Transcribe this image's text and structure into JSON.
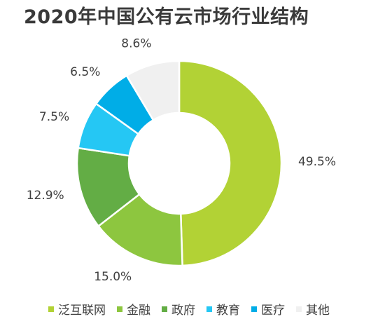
{
  "chart_data": {
    "type": "pie",
    "title": "2020年中国公有云市场行业结构",
    "categories": [
      "泛互联网",
      "金融",
      "政府",
      "教育",
      "医疗",
      "其他"
    ],
    "values": [
      49.5,
      15.0,
      12.9,
      7.5,
      6.5,
      8.6
    ],
    "value_labels": [
      "49.5%",
      "15.0%",
      "12.9%",
      "7.5%",
      "6.5%",
      "8.6%"
    ],
    "colors": [
      "#b2d235",
      "#8dc63f",
      "#63ad45",
      "#25c7f4",
      "#00ade7",
      "#f0f0f0"
    ],
    "donut": true,
    "legend_position": "bottom"
  }
}
